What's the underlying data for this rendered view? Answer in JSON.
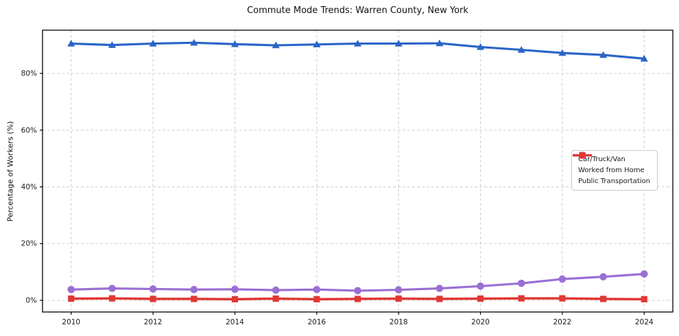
{
  "chart_data": {
    "type": "line",
    "title": "Commute Mode Trends: Warren County, New York",
    "xlabel": "",
    "ylabel": "Percentage of Workers (%)",
    "x": [
      2010,
      2011,
      2012,
      2013,
      2014,
      2015,
      2016,
      2017,
      2018,
      2019,
      2020,
      2021,
      2022,
      2023,
      2024
    ],
    "x_tick_labels": [
      "2010",
      "2012",
      "2014",
      "2016",
      "2018",
      "2020",
      "2022",
      "2024"
    ],
    "x_tick_values": [
      2010,
      2012,
      2014,
      2016,
      2018,
      2020,
      2022,
      2024
    ],
    "y_tick_labels": [
      "0%",
      "20%",
      "40%",
      "60%",
      "80%"
    ],
    "y_tick_values": [
      0,
      20,
      40,
      60,
      80
    ],
    "xlim": [
      2009.3,
      2024.7
    ],
    "ylim": [
      -4.11,
      95.23
    ],
    "grid": true,
    "grid_style": "dashed",
    "legend_position": "center-right",
    "series": [
      {
        "name": "Car/Truck/Van",
        "color": "#2a65c8",
        "marker": "triangle",
        "values": [
          90.5,
          90.0,
          90.5,
          90.8,
          90.3,
          89.9,
          90.2,
          90.5,
          90.5,
          90.6,
          89.3,
          88.3,
          87.2,
          86.5,
          85.2
        ]
      },
      {
        "name": "Worked from Home",
        "color": "#9a6fd4",
        "marker": "circle",
        "values": [
          3.8,
          4.2,
          4.0,
          3.8,
          3.9,
          3.6,
          3.8,
          3.4,
          3.7,
          4.2,
          5.0,
          6.0,
          7.5,
          8.3,
          9.3
        ]
      },
      {
        "name": "Public Transportation",
        "color": "#e13834",
        "marker": "square",
        "values": [
          0.6,
          0.7,
          0.5,
          0.5,
          0.4,
          0.6,
          0.4,
          0.5,
          0.6,
          0.5,
          0.6,
          0.7,
          0.7,
          0.5,
          0.4
        ]
      }
    ],
    "colors": {
      "grid": "#cfcfcf",
      "spine": "#000000",
      "tick_text": "#1a1a1a",
      "background": "#ffffff"
    }
  }
}
